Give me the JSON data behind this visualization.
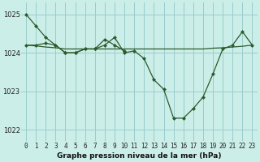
{
  "title": "Graphe pression niveau de la mer (hPa)",
  "bg_color": "#cceee8",
  "grid_color": "#99cccc",
  "line_color": "#2d5a2d",
  "marker_color": "#2d5a2d",
  "ylim": [
    1021.7,
    1025.3
  ],
  "yticks": [
    1022,
    1023,
    1024,
    1025
  ],
  "xlim": [
    -0.5,
    23.5
  ],
  "xticks": [
    0,
    1,
    2,
    3,
    4,
    5,
    6,
    7,
    8,
    9,
    10,
    11,
    12,
    13,
    14,
    15,
    16,
    17,
    18,
    19,
    20,
    21,
    22,
    23
  ],
  "series_main": [
    1025.0,
    1024.7,
    1024.4,
    1024.2,
    1024.0,
    1024.0,
    1024.1,
    1024.1,
    1024.2,
    1024.4,
    1024.0,
    1024.05,
    1023.85,
    1023.3,
    1023.05,
    1022.3,
    1022.3,
    1022.55,
    1022.85,
    1023.45,
    1024.1,
    1024.2,
    1024.55,
    1024.2
  ],
  "series_flat": [
    1024.2,
    1024.18,
    1024.15,
    1024.13,
    1024.1,
    1024.1,
    1024.1,
    1024.1,
    1024.1,
    1024.1,
    1024.1,
    1024.1,
    1024.1,
    1024.1,
    1024.1,
    1024.1,
    1024.1,
    1024.1,
    1024.1,
    1024.12,
    1024.13,
    1024.15,
    1024.17,
    1024.2
  ],
  "series_second": [
    1024.2,
    1024.2,
    1024.25,
    1024.2,
    1024.0,
    1024.0,
    1024.1,
    1024.1,
    1024.35,
    1024.2,
    1024.05,
    null,
    null,
    null,
    null,
    null,
    null,
    null,
    null,
    null,
    null,
    null,
    null,
    null
  ],
  "xlabel_fontsize": 6.5,
  "tick_fontsize": 5.5,
  "ytick_fontsize": 6.0
}
